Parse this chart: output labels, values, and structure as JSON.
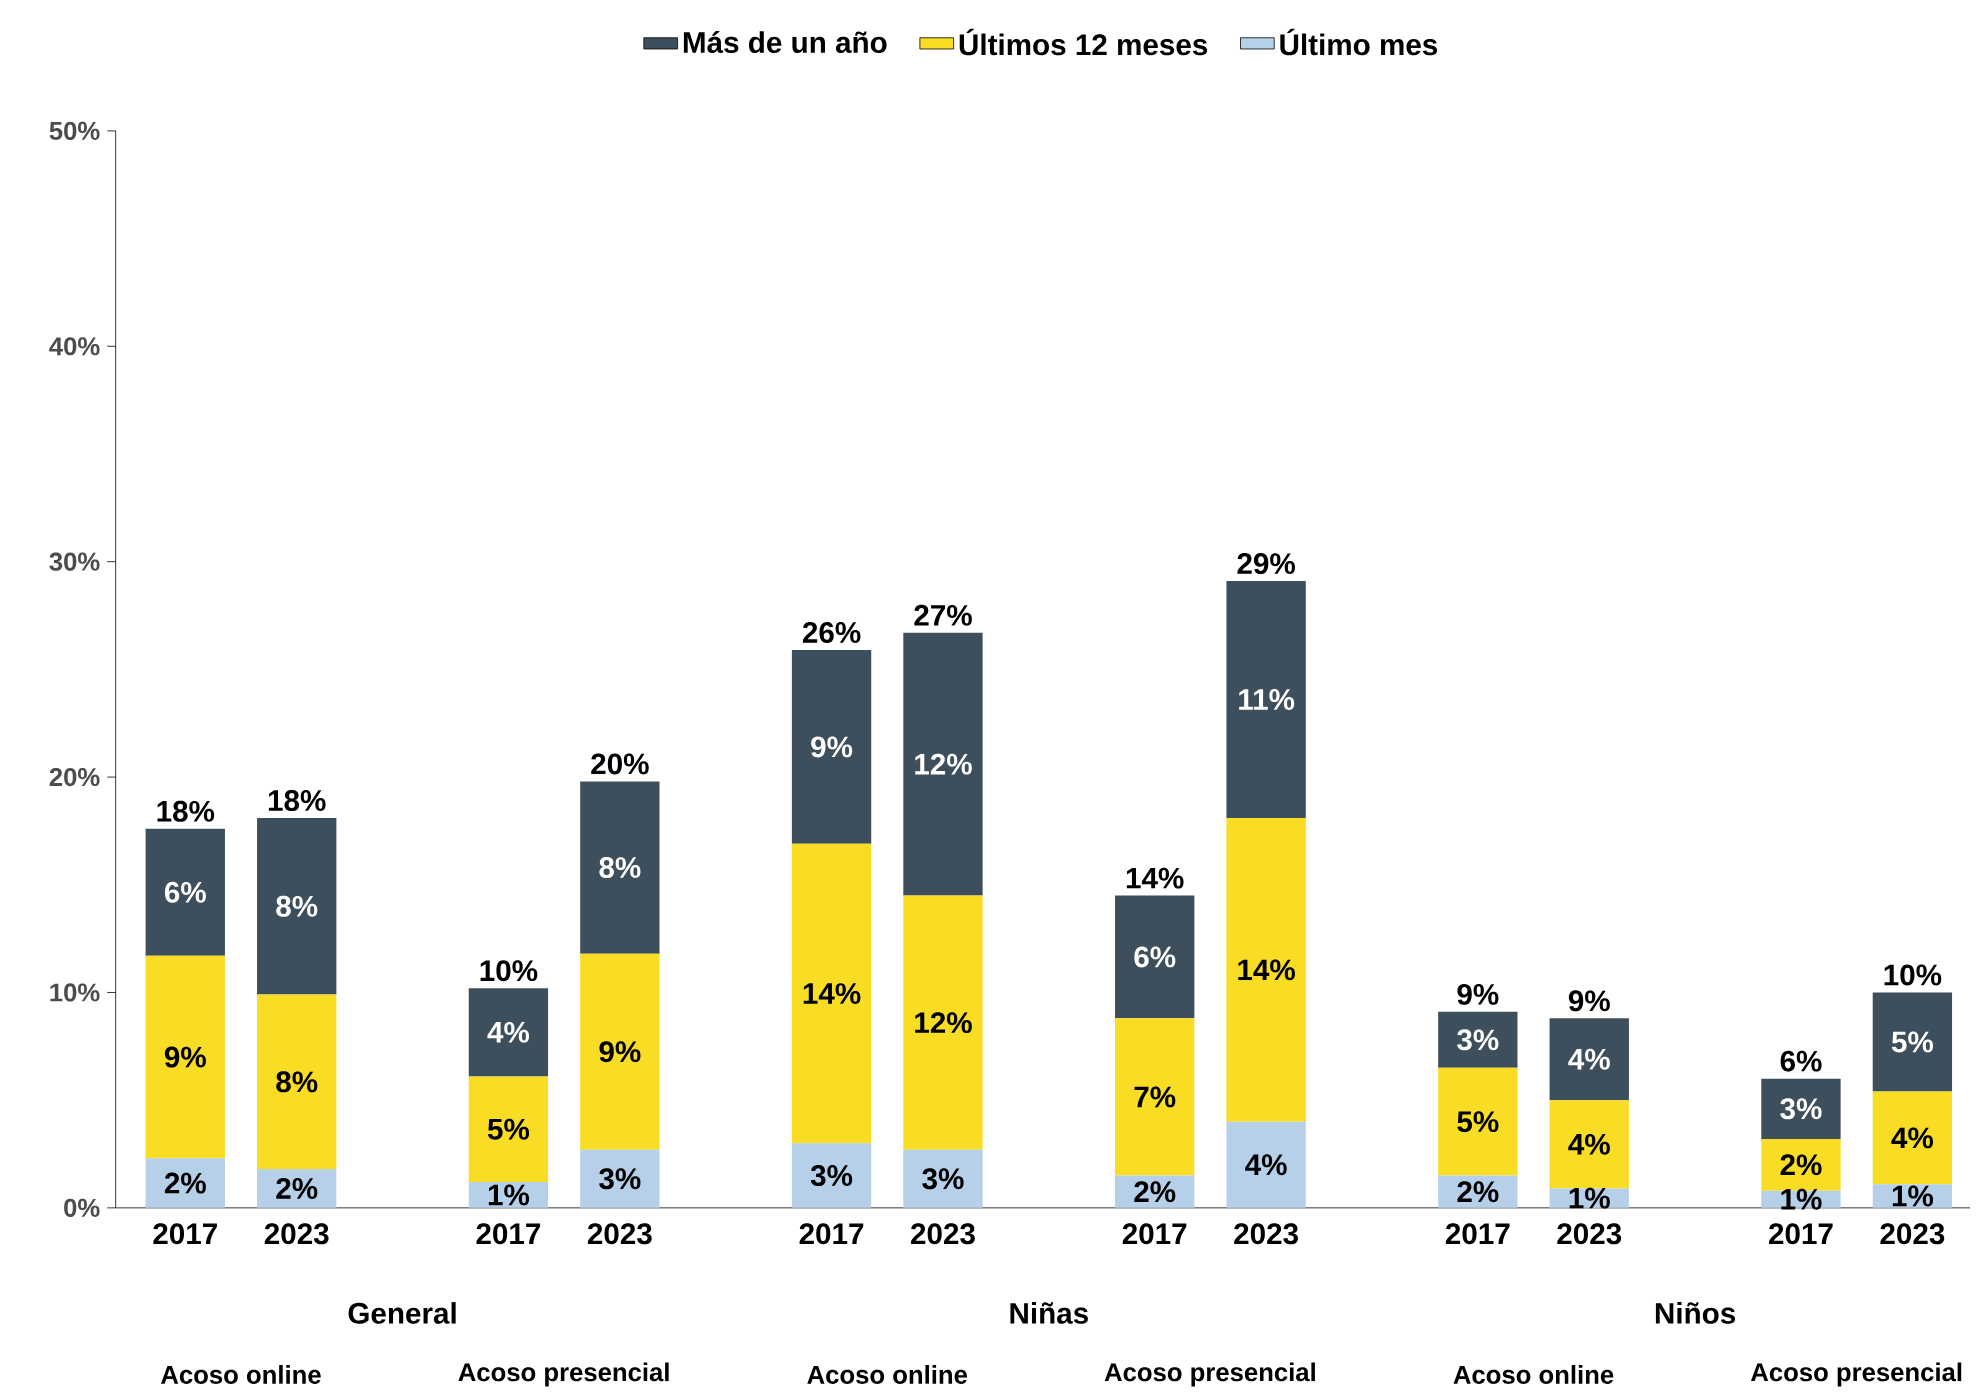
{
  "chart_data": {
    "type": "bar",
    "stacked": true,
    "legend": "top",
    "categories": [
      "2017",
      "2023",
      "2017",
      "2023",
      "2017",
      "2023",
      "2017",
      "2023",
      "2017",
      "2023",
      "2017",
      "2023"
    ],
    "series": [
      {
        "name": "Último mes",
        "color": "#b5d0e8",
        "values": [
          2.3,
          1.8,
          1.2,
          2.7,
          3.0,
          2.7,
          1.5,
          4.0,
          1.5,
          0.9,
          0.8,
          1.1
        ],
        "value_labels": [
          "2%",
          "2%",
          "1%",
          "3%",
          "3%",
          "3%",
          "2%",
          "4%",
          "2%",
          "1%",
          "1%",
          "1%"
        ]
      },
      {
        "name": "Últimos 12 meses",
        "color": "#f9dc24",
        "values": [
          9.4,
          8.1,
          4.9,
          9.1,
          13.9,
          11.8,
          7.3,
          14.1,
          5.0,
          4.1,
          2.4,
          4.3
        ],
        "value_labels": [
          "9%",
          "8%",
          "5%",
          "9%",
          "14%",
          "12%",
          "7%",
          "14%",
          "5%",
          "4%",
          "2%",
          "4%"
        ]
      },
      {
        "name": "Más de un año",
        "color": "#3d4f5c",
        "values": [
          5.9,
          8.2,
          4.1,
          8.0,
          9.0,
          12.2,
          5.7,
          11.0,
          2.6,
          3.8,
          2.8,
          4.6
        ],
        "value_labels": [
          "6%",
          "8%",
          "4%",
          "8%",
          "9%",
          "12%",
          "6%",
          "11%",
          "3%",
          "4%",
          "3%",
          "5%"
        ]
      }
    ],
    "totals": [
      "18%",
      "18%",
      "10%",
      "20%",
      "26%",
      "27%",
      "14%",
      "29%",
      "9%",
      "9%",
      "6%",
      "10%"
    ],
    "ylim": [
      0,
      50
    ],
    "yticks": [
      {
        "value": 0,
        "label": "0%"
      },
      {
        "value": 10,
        "label": "10%"
      },
      {
        "value": 20,
        "label": "20%"
      },
      {
        "value": 30,
        "label": "30%"
      },
      {
        "value": 40,
        "label": "40%"
      },
      {
        "value": 50,
        "label": "50%"
      }
    ],
    "annotations": [
      "General",
      "Niñas",
      "Niños",
      "Acoso online",
      "Acoso presencial",
      "Acoso online",
      "Acoso presencial",
      "Acoso online",
      "Acoso presencial"
    ]
  }
}
